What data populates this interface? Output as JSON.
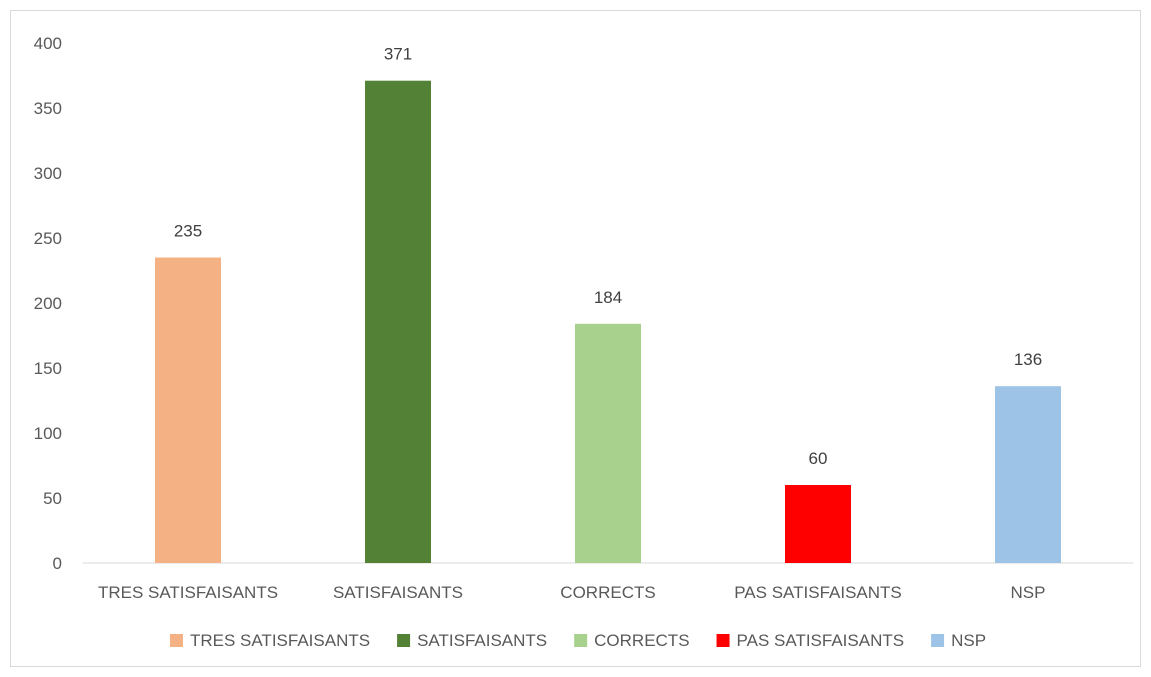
{
  "chart_data": {
    "type": "bar",
    "categories": [
      "TRES SATISFAISANTS",
      "SATISFAISANTS",
      "CORRECTS",
      "PAS SATISFAISANTS",
      "NSP"
    ],
    "values": [
      235,
      371,
      184,
      60,
      136
    ],
    "colors": [
      "#F4B183",
      "#538135",
      "#A9D18E",
      "#FF0000",
      "#9DC3E6"
    ],
    "yticks": [
      0,
      50,
      100,
      150,
      200,
      250,
      300,
      350,
      400
    ],
    "ylim": [
      0,
      400
    ],
    "grid": false,
    "legend_position": "bottom",
    "title": "",
    "xlabel": "",
    "ylabel": ""
  }
}
